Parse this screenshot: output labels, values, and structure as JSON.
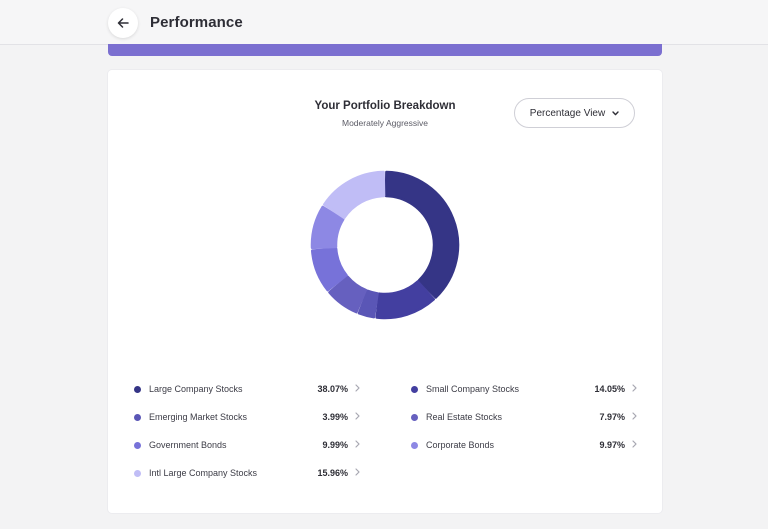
{
  "header": {
    "title": "Performance",
    "back_icon": "arrow-left-icon"
  },
  "card": {
    "title": "Your Portfolio Breakdown",
    "subtitle": "Moderately Aggressive",
    "view_button": {
      "label": "Percentage View",
      "icon": "chevron-down-icon"
    }
  },
  "colors": {
    "accent": "#7b6fd0",
    "large_company": "#353586",
    "small_company": "#433fa0",
    "emerging_market": "#5a56b6",
    "real_estate": "#6660bf",
    "government_bonds": "#7772d9",
    "corporate_bonds": "#8d88e4",
    "intl_large_company": "#c0bdf6"
  },
  "holdings": [
    {
      "label": "Large Company Stocks",
      "value": "38.07%",
      "color": "#353586",
      "chevron": "chevron-right-icon"
    },
    {
      "label": "Emerging Market Stocks",
      "value": "3.99%",
      "color": "#5a56b6",
      "chevron": "chevron-right-icon"
    },
    {
      "label": "Government Bonds",
      "value": "9.99%",
      "color": "#7772d9",
      "chevron": "chevron-right-icon"
    },
    {
      "label": "Intl Large Company Stocks",
      "value": "15.96%",
      "color": "#c0bdf6",
      "chevron": "chevron-right-icon"
    },
    {
      "label": "Small Company Stocks",
      "value": "14.05%",
      "color": "#433fa0",
      "chevron": "chevron-right-icon"
    },
    {
      "label": "Real Estate Stocks",
      "value": "7.97%",
      "color": "#6660bf",
      "chevron": "chevron-right-icon"
    },
    {
      "label": "Corporate Bonds",
      "value": "9.97%",
      "color": "#8d88e4",
      "chevron": "chevron-right-icon"
    }
  ],
  "chart_data": {
    "type": "pie",
    "style": "donut",
    "categories": [
      "Large Company Stocks",
      "Small Company Stocks",
      "Emerging Market Stocks",
      "Real Estate Stocks",
      "Government Bonds",
      "Corporate Bonds",
      "Intl Large Company Stocks"
    ],
    "values": [
      38.07,
      14.05,
      3.99,
      7.97,
      9.99,
      9.97,
      15.96
    ],
    "colors": [
      "#353586",
      "#433fa0",
      "#5a56b6",
      "#6660bf",
      "#7772d9",
      "#8d88e4",
      "#c0bdf6"
    ],
    "title": "Your Portfolio Breakdown",
    "subtitle": "Moderately Aggressive",
    "legend": "bottom"
  }
}
